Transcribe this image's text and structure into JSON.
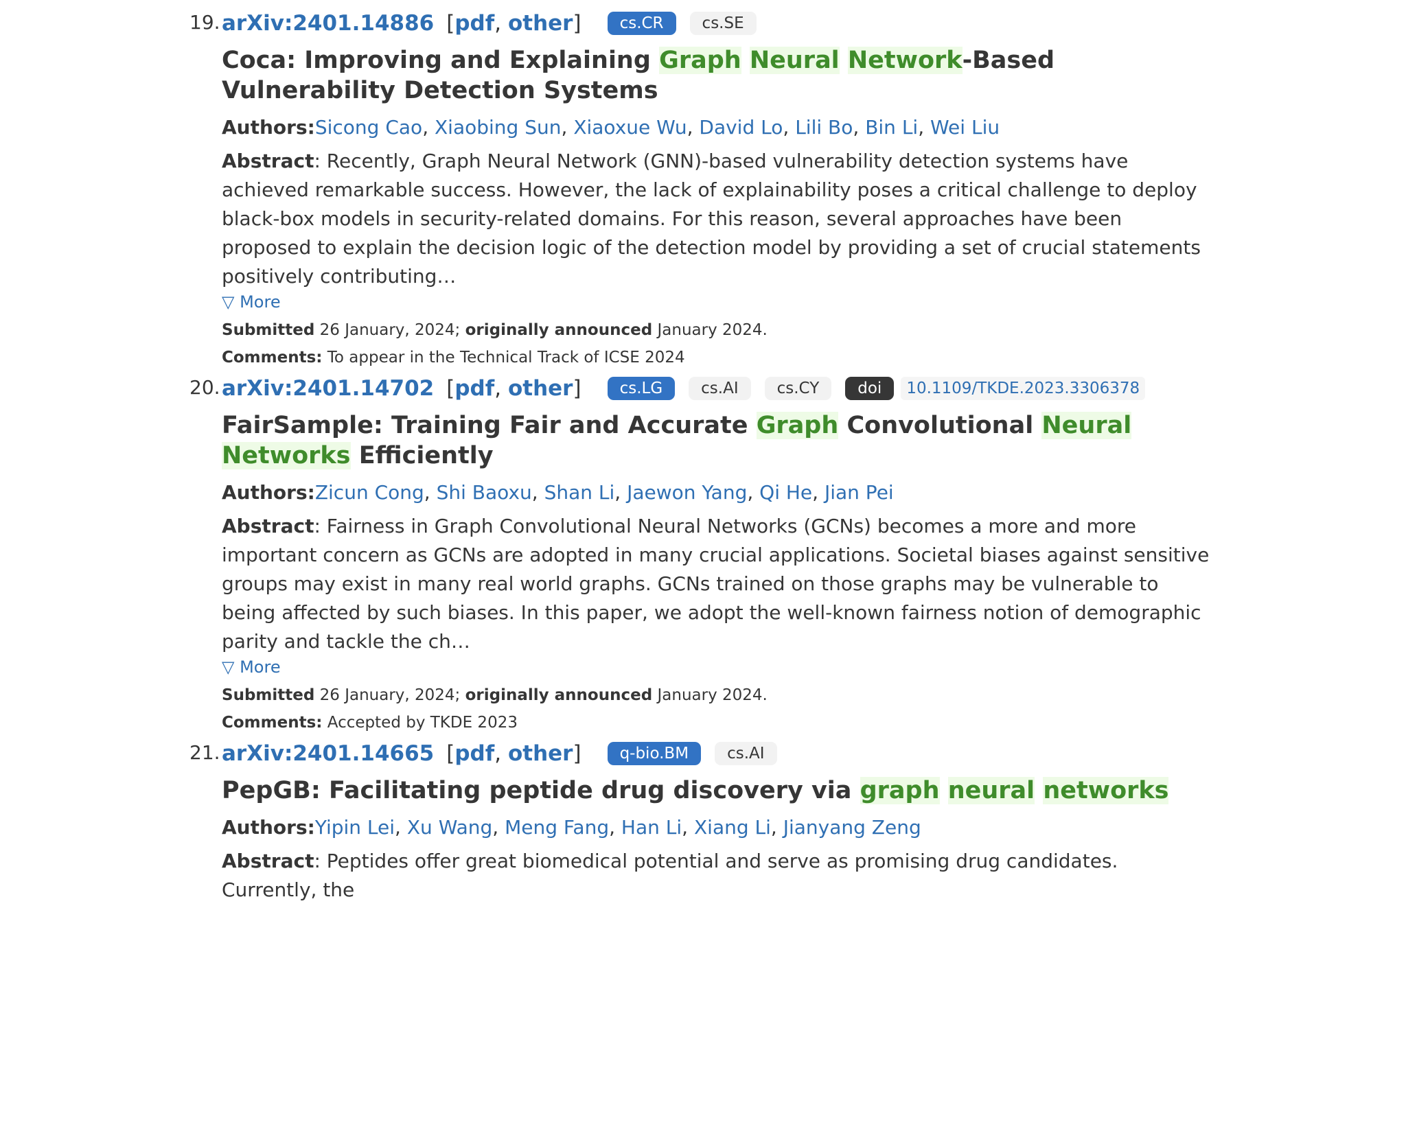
{
  "results": [
    {
      "num": "19.",
      "id": "arXiv:2401.14886",
      "pdf": "pdf",
      "other": "other",
      "tags": [
        {
          "text": "cs.CR",
          "style": "primary"
        },
        {
          "text": "cs.SE",
          "style": "light"
        }
      ],
      "title_parts": [
        {
          "text": "Coca: Improving and Explaining ",
          "hl": false
        },
        {
          "text": "Graph",
          "hl": true
        },
        {
          "text": " ",
          "hl": false
        },
        {
          "text": "Neural",
          "hl": true
        },
        {
          "text": " ",
          "hl": false
        },
        {
          "text": "Network",
          "hl": true
        },
        {
          "text": "-Based Vulnerability Detection Systems",
          "hl": false
        }
      ],
      "authors_label": "Authors:",
      "authors": [
        "Sicong Cao",
        "Xiaobing Sun",
        "Xiaoxue Wu",
        "David Lo",
        "Lili Bo",
        "Bin Li",
        "Wei Liu"
      ],
      "abstract_label": "Abstract",
      "abstract": ": Recently, Graph Neural Network (GNN)-based vulnerability detection systems have achieved remarkable success. However, the lack of explainability poses a critical challenge to deploy black-box models in security-related domains. For this reason, several approaches have been proposed to explain the decision logic of the detection model by providing a set of crucial statements positively contributing…",
      "more": "▽ More",
      "submitted_label": "Submitted",
      "submitted": " 26 January, 2024; ",
      "announced_label": "originally announced",
      "announced": " January 2024.",
      "comments_label": "Comments:",
      "comments": " To appear in the Technical Track of ICSE 2024"
    },
    {
      "num": "20.",
      "id": "arXiv:2401.14702",
      "pdf": "pdf",
      "other": "other",
      "tags": [
        {
          "text": "cs.LG",
          "style": "primary"
        },
        {
          "text": "cs.AI",
          "style": "light"
        },
        {
          "text": "cs.CY",
          "style": "light"
        },
        {
          "text": "doi",
          "style": "dark"
        }
      ],
      "doi": "10.1109/TKDE.2023.3306378",
      "title_parts": [
        {
          "text": "FairSample: Training Fair and Accurate ",
          "hl": false
        },
        {
          "text": "Graph",
          "hl": true
        },
        {
          "text": " Convolutional ",
          "hl": false
        },
        {
          "text": "Neural",
          "hl": true
        },
        {
          "text": " ",
          "hl": false
        },
        {
          "text": "Networks",
          "hl": true
        },
        {
          "text": " Efficiently",
          "hl": false
        }
      ],
      "authors_label": "Authors:",
      "authors": [
        "Zicun Cong",
        "Shi Baoxu",
        "Shan Li",
        "Jaewon Yang",
        "Qi He",
        "Jian Pei"
      ],
      "abstract_label": "Abstract",
      "abstract": ": Fairness in Graph Convolutional Neural Networks (GCNs) becomes a more and more important concern as GCNs are adopted in many crucial applications. Societal biases against sensitive groups may exist in many real world graphs. GCNs trained on those graphs may be vulnerable to being affected by such biases. In this paper, we adopt the well-known fairness notion of demographic parity and tackle the ch…",
      "more": "▽ More",
      "submitted_label": "Submitted",
      "submitted": " 26 January, 2024; ",
      "announced_label": "originally announced",
      "announced": " January 2024.",
      "comments_label": "Comments:",
      "comments": " Accepted by TKDE 2023"
    },
    {
      "num": "21.",
      "id": "arXiv:2401.14665",
      "pdf": "pdf",
      "other": "other",
      "tags": [
        {
          "text": "q-bio.BM",
          "style": "primary"
        },
        {
          "text": "cs.AI",
          "style": "light"
        }
      ],
      "title_parts": [
        {
          "text": "PepGB: Facilitating peptide drug discovery via ",
          "hl": false
        },
        {
          "text": "graph",
          "hl": true
        },
        {
          "text": " ",
          "hl": false
        },
        {
          "text": "neural",
          "hl": true
        },
        {
          "text": " ",
          "hl": false
        },
        {
          "text": "networks",
          "hl": true
        }
      ],
      "authors_label": "Authors:",
      "authors": [
        "Yipin Lei",
        "Xu Wang",
        "Meng Fang",
        "Han Li",
        "Xiang Li",
        "Jianyang Zeng"
      ],
      "abstract_label": "Abstract",
      "abstract": ": Peptides offer great biomedical potential and serve as promising drug candidates. Currently, the"
    }
  ]
}
